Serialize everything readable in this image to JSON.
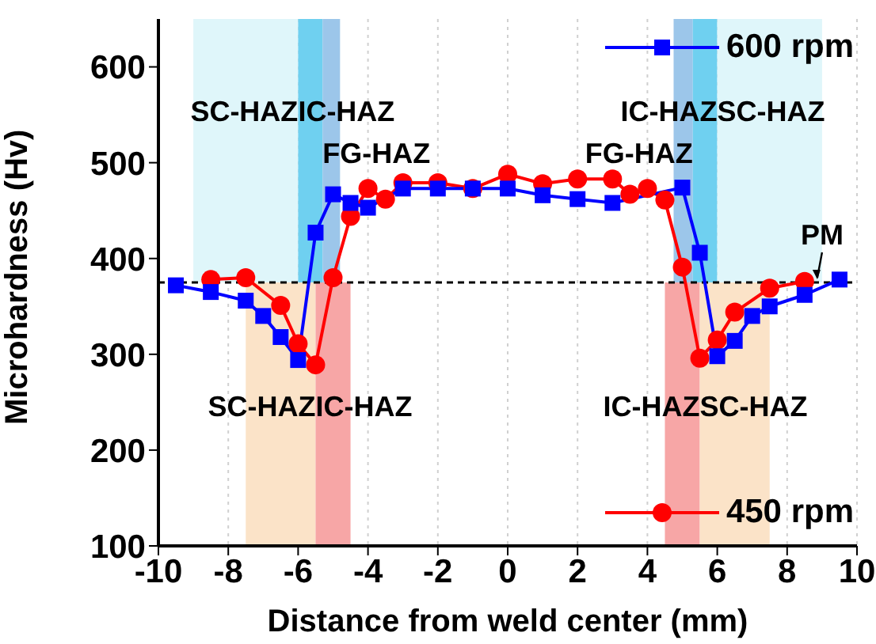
{
  "chart_data": {
    "type": "line",
    "xlabel": "Distance from weld center (mm)",
    "ylabel": "Microhardness (Hv)",
    "xlim": [
      -10,
      10
    ],
    "xticks": [
      -10,
      -8,
      -6,
      -4,
      -2,
      0,
      2,
      4,
      6,
      8,
      10
    ],
    "ylim": [
      100,
      650
    ],
    "yticks": [
      100,
      200,
      300,
      400,
      500,
      600
    ],
    "grid": "x",
    "legend": "right",
    "series": [
      {
        "name": "600 rpm",
        "color": "#0000ff",
        "marker": "square",
        "x": [
          -9.5,
          -8.5,
          -7.5,
          -7,
          -6.5,
          -6,
          -5.5,
          -5,
          -4.5,
          -4,
          -3,
          -2,
          -1,
          0,
          1,
          2,
          3,
          5,
          5.5,
          6,
          6.5,
          7,
          7.5,
          8.5,
          9.5
        ],
        "values": [
          372,
          365,
          356,
          340,
          318,
          294,
          427,
          467,
          458,
          453,
          473,
          473,
          473,
          473,
          466,
          462,
          458,
          474,
          406,
          298,
          314,
          340,
          350,
          362,
          378
        ]
      },
      {
        "name": "450 rpm",
        "color": "#ff0000",
        "marker": "circle",
        "x": [
          -8.5,
          -7.5,
          -6.5,
          -6,
          -5.5,
          -5,
          -4.5,
          -4,
          -3.5,
          -3,
          -2,
          -1,
          0,
          1,
          2,
          3,
          3.5,
          4,
          4.5,
          5,
          5.5,
          6,
          6.5,
          7.5,
          8.5
        ],
        "values": [
          378,
          380,
          351,
          311,
          289,
          380,
          444,
          473,
          462,
          479,
          479,
          473,
          488,
          478,
          483,
          483,
          467,
          473,
          461,
          391,
          296,
          315,
          344,
          369,
          376
        ]
      }
    ],
    "ref_lines": [
      {
        "axis": "y",
        "value": 375,
        "color": "#000000",
        "line_style": "dashed"
      }
    ],
    "bands": [
      {
        "axis": "x",
        "from": -9,
        "to": -6,
        "color": "#dff6fa",
        "label": "SC-HAZ"
      },
      {
        "axis": "x",
        "from": -6,
        "to": -5.3,
        "color": "#6fd0f0",
        "label": "IC-HAZ"
      },
      {
        "axis": "x",
        "from": -5.3,
        "to": -4.8,
        "color": "#9cc6ea",
        "label": "FG-HAZ"
      },
      {
        "axis": "x",
        "from": 4.75,
        "to": 5.3,
        "color": "#9cc6ea",
        "label": "FG-HAZ"
      },
      {
        "axis": "x",
        "from": 5.3,
        "to": 6,
        "color": "#6fd0f0",
        "label": "IC-HAZ"
      },
      {
        "axis": "x",
        "from": 6,
        "to": 9,
        "color": "#dff6fa",
        "label": "SC-HAZ"
      },
      {
        "axis": "x",
        "from": -7.5,
        "to": -5.5,
        "color": "#fbe3c8",
        "label": "SC-HAZ"
      },
      {
        "axis": "x",
        "from": -5.5,
        "to": -4.5,
        "color": "#f7a6a6",
        "label": "IC-HAZ"
      },
      {
        "axis": "x",
        "from": 4.5,
        "to": 5.5,
        "color": "#f7a6a6",
        "label": "IC-HAZ"
      },
      {
        "axis": "x",
        "from": 5.5,
        "to": 7.5,
        "color": "#fbe3c8",
        "label": "SC-HAZ"
      }
    ],
    "annotations": [
      {
        "text": "PM",
        "x": 9,
        "y": 375
      }
    ]
  }
}
